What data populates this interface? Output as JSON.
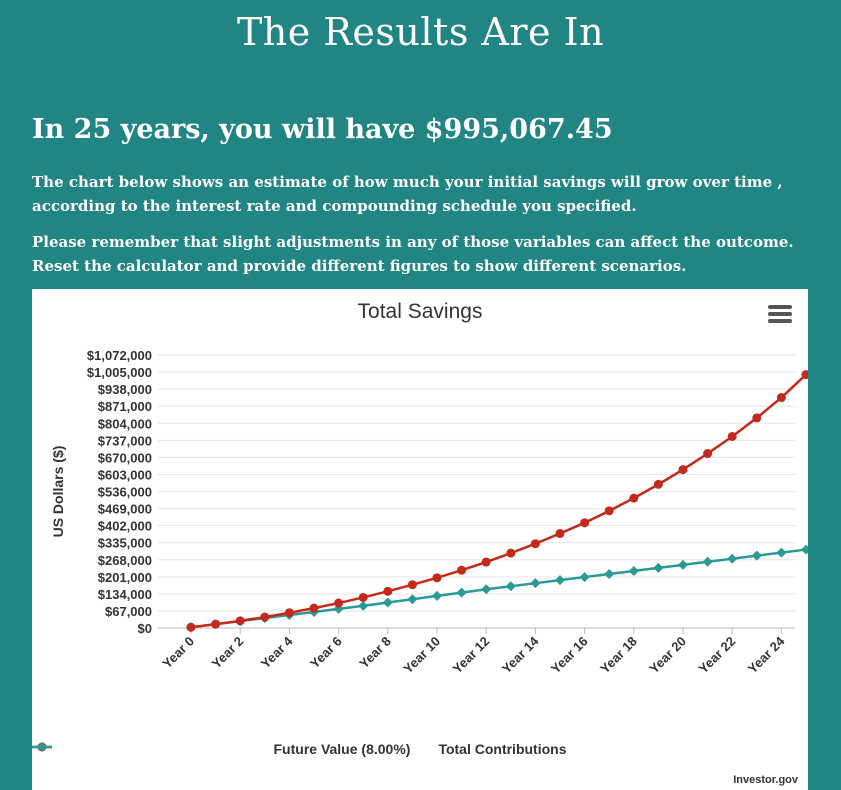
{
  "page": {
    "title": "The Results Are In",
    "headline": "In 25 years, you will have $995,067.45",
    "paragraph1": "The chart below shows an estimate of how much your initial savings will grow over time , according to the interest rate and compounding schedule you specified.",
    "paragraph2": "Please remember that slight adjustments in any of those variables can affect the outcome. Reset the calculator and provide different figures to show different scenarios."
  },
  "credit": "Investor.gov",
  "menu_icon": "hamburger-menu-icon",
  "colors": {
    "background": "#218583",
    "future_value": "#c4291c",
    "contributions": "#2a9a97"
  },
  "chart_data": {
    "type": "line",
    "title": "Total Savings",
    "xlabel": "",
    "ylabel": "US Dollars ($)",
    "ylim": [
      0,
      1072000
    ],
    "y_ticks": [
      "$0",
      "$67,000",
      "$134,000",
      "$201,000",
      "$268,000",
      "$335,000",
      "$402,000",
      "$469,000",
      "$536,000",
      "$603,000",
      "$670,000",
      "$737,000",
      "$804,000",
      "$871,000",
      "$938,000",
      "$1,005,000",
      "$1,072,000"
    ],
    "x_tick_labels": [
      "Year 0",
      "Year 2",
      "Year 4",
      "Year 6",
      "Year 8",
      "Year 10",
      "Year 12",
      "Year 14",
      "Year 16",
      "Year 18",
      "Year 20",
      "Year 22",
      "Year 24"
    ],
    "categories": [
      "Year 0",
      "Year 1",
      "Year 2",
      "Year 3",
      "Year 4",
      "Year 5",
      "Year 6",
      "Year 7",
      "Year 8",
      "Year 9",
      "Year 10",
      "Year 11",
      "Year 12",
      "Year 13",
      "Year 14",
      "Year 15",
      "Year 16",
      "Year 17",
      "Year 18",
      "Year 19",
      "Year 20",
      "Year 21",
      "Year 22",
      "Year 23",
      "Year 24",
      "Year 25"
    ],
    "legend_position": "bottom-center",
    "grid": true,
    "series": [
      {
        "name": "Future Value (8.00%)",
        "marker": "circle",
        "values": [
          3000,
          15000,
          28000,
          43000,
          60000,
          78000,
          98000,
          120000,
          144000,
          170000,
          197000,
          227000,
          259000,
          294000,
          331000,
          371000,
          413000,
          460000,
          510000,
          564000,
          622000,
          685000,
          752000,
          825000,
          905000,
          995067
        ]
      },
      {
        "name": "Total Contributions",
        "marker": "diamond",
        "values": [
          3000,
          15000,
          27000,
          39000,
          51000,
          63000,
          75000,
          87000,
          100000,
          113000,
          126000,
          139000,
          152000,
          164000,
          176000,
          188000,
          200000,
          212000,
          224000,
          236000,
          248000,
          260000,
          272000,
          284000,
          296000,
          308000
        ]
      }
    ]
  }
}
